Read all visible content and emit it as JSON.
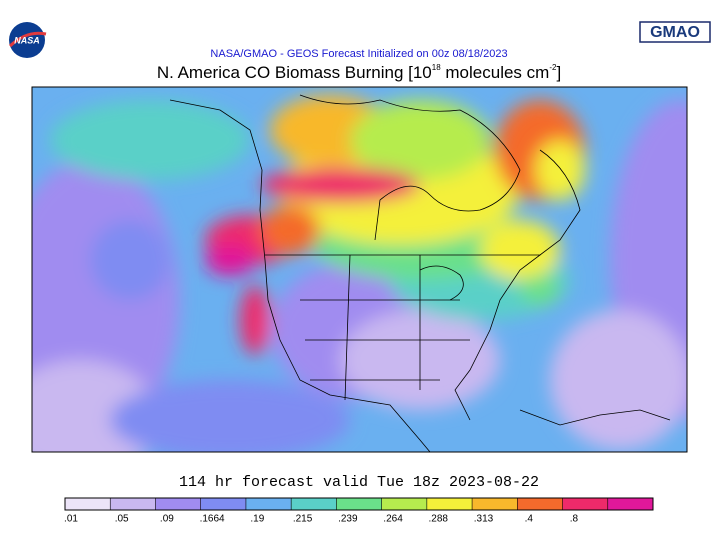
{
  "logo": {
    "left": "NASA",
    "right": "GMAO"
  },
  "header": {
    "subtitle": "NASA/GMAO - GEOS Forecast Initialized on 00z 08/18/2023",
    "title": {
      "main": "N. America CO Biomass Burning [10",
      "exp1": "18",
      "mid": " molecules cm",
      "exp2": "-2",
      "end": "]"
    }
  },
  "footer": {
    "valid": "114 hr forecast valid Tue 18z 2023-08-22"
  },
  "colorbar": {
    "labels": [
      ".01",
      ".05",
      ".09",
      ".1664",
      ".19",
      ".215",
      ".239",
      ".264",
      ".288",
      ".313",
      ".4",
      ".8"
    ],
    "colors": [
      "#ece4f8",
      "#c9b8f0",
      "#a08cf0",
      "#7f8cf2",
      "#6ab0f0",
      "#5ad0c8",
      "#6ae08a",
      "#b6ec4e",
      "#f4f03a",
      "#f8b82c",
      "#f46a2c",
      "#ee2a6a",
      "#e0189a"
    ]
  }
}
